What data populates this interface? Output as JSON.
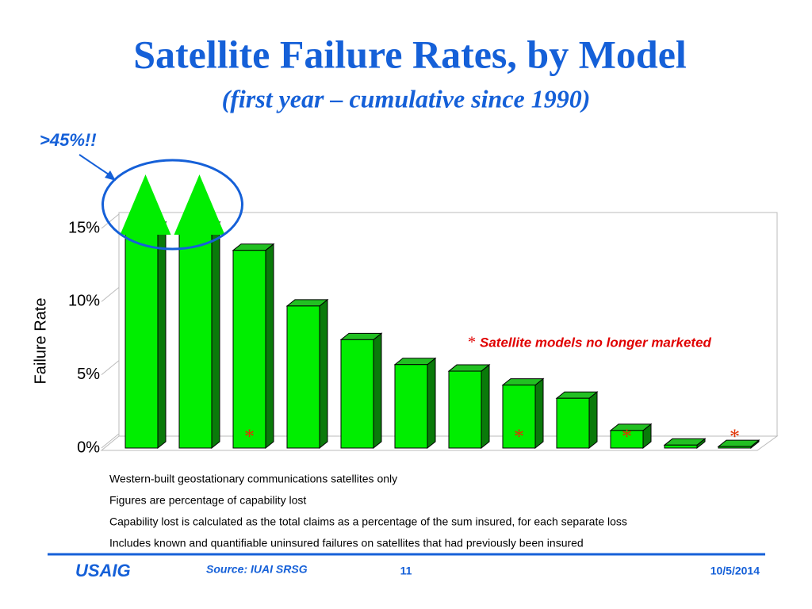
{
  "title": "Satellite Failure Rates, by Model",
  "subtitle": "(first year – cumulative since 1990)",
  "callout": ">45%!!",
  "chart_data": {
    "type": "bar3d",
    "y_label": "Failure Rate",
    "categories": [
      null,
      null,
      null,
      null,
      null,
      null,
      null,
      null,
      null,
      null,
      null,
      null
    ],
    "values": [
      45,
      45,
      13.5,
      9.7,
      7.4,
      5.7,
      5.25,
      4.3,
      3.4,
      1.2,
      0.2,
      0.1
    ],
    "color": "#00ee00",
    "discontinued": [
      false,
      false,
      true,
      false,
      false,
      false,
      false,
      true,
      false,
      true,
      false,
      true
    ],
    "asterisk": "*",
    "note": "Satellite models no longer marketed",
    "ylim": [
      0,
      15
    ],
    "yticks": [
      {
        "value": 0,
        "label": "0%"
      },
      {
        "value": 5,
        "label": "5%"
      },
      {
        "value": 10,
        "label": "10%"
      },
      {
        "value": 15,
        "label": "15%"
      }
    ],
    "grid": false
  },
  "notes": [
    "Western-built geostationary communications satellites only",
    "Figures are percentage of capability lost",
    "Capability lost is calculated as the total claims as a percentage of the sum insured, for each separate loss",
    "Includes known and quantifiable uninsured failures on satellites that had previously been insured"
  ],
  "footer": {
    "logo": "USAIG",
    "source": "Source: IUAI SRSG",
    "page": "11",
    "date": "10/5/2014"
  }
}
